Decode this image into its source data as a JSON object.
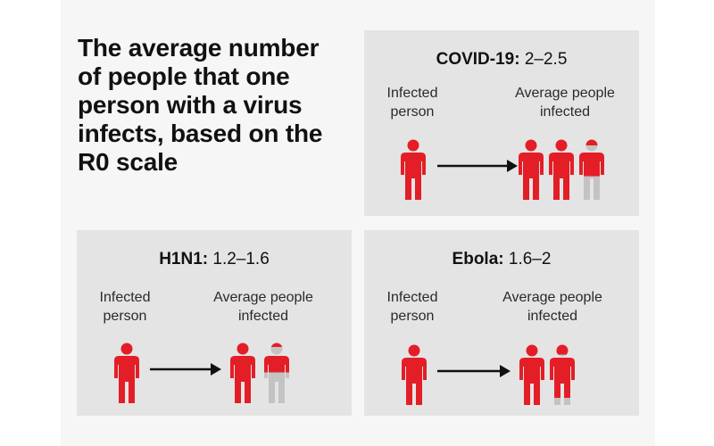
{
  "headline": "The average number of people that one person with a virus infects, based on the R0 scale",
  "colors": {
    "infected": "#e41e26",
    "uninfected": "#c3c3c3",
    "arrow": "#111111"
  },
  "icons": {
    "person": "person-icon",
    "arrow": "arrow-right-icon"
  },
  "panels": [
    {
      "id": "covid",
      "name": "COVID-19:",
      "range": "2–2.5",
      "infected_label": "Infected person",
      "average_label": "Average people infected",
      "average_infected": 2.5
    },
    {
      "id": "h1n1",
      "name": "H1N1:",
      "range": "1.2–1.6",
      "infected_label": "Infected person",
      "average_label": "Average people infected",
      "average_infected": 1.35
    },
    {
      "id": "ebola",
      "name": "Ebola:",
      "range": "1.6–2",
      "infected_label": "Infected person",
      "average_label": "Average people infected",
      "average_infected": 1.85
    }
  ]
}
